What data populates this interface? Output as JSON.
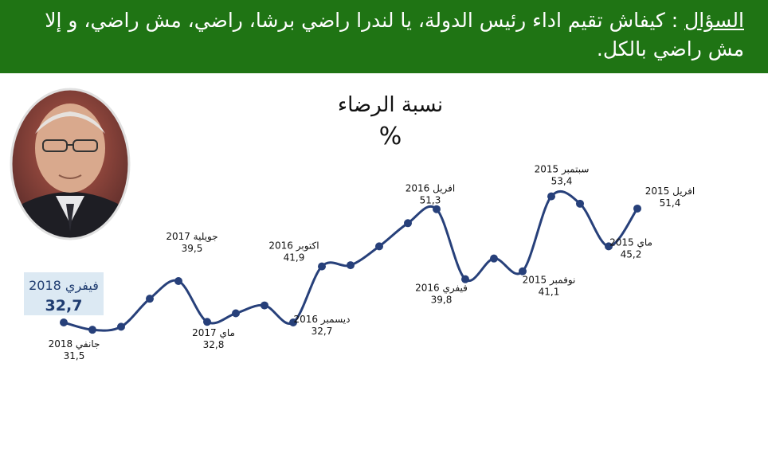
{
  "header": {
    "question_label": "السؤال",
    "question_text": " : كيفاش تقيم اداء  رئيس الدولة، يا لندرا راضي برشا، راضي، مش راضي، و إلا مش راضي بالكل."
  },
  "colors": {
    "banner": "#1f7414",
    "line": "#27407a",
    "highlight_box": "#dce9f3"
  },
  "chart_data": {
    "type": "line",
    "title": "نسبة الرضاء",
    "unit": "%",
    "note": "values read right-to-left chronologically (April 2015 → February 2018); only labeled points carry labels",
    "points": [
      {
        "label": "افريل 2015",
        "value": "51,4",
        "y": 51.4
      },
      {
        "label": "ماي 2015",
        "value": "45,2",
        "y": 45.2
      },
      {
        "label": "",
        "value": "",
        "y": 52.2
      },
      {
        "label": "سبتمبر 2015",
        "value": "53,4",
        "y": 53.4
      },
      {
        "label": "نوفمبر 2015",
        "value": "41,1",
        "y": 41.1
      },
      {
        "label": "",
        "value": "",
        "y": 43.2
      },
      {
        "label": "فيفري 2016",
        "value": "39,8",
        "y": 39.8
      },
      {
        "label": "افريل 2016",
        "value": "51,3",
        "y": 51.3
      },
      {
        "label": "",
        "value": "",
        "y": 49.0
      },
      {
        "label": "",
        "value": "",
        "y": 45.2
      },
      {
        "label": "",
        "value": "",
        "y": 42.1
      },
      {
        "label": "اكتوبر 2016",
        "value": "41,9",
        "y": 41.9
      },
      {
        "label": "ديسمبر 2016",
        "value": "32,7",
        "y": 32.7
      },
      {
        "label": "",
        "value": "",
        "y": 35.5
      },
      {
        "label": "",
        "value": "",
        "y": 34.2
      },
      {
        "label": "ماي 2017",
        "value": "32,8",
        "y": 32.8
      },
      {
        "label": "جويلية 2017",
        "value": "39,5",
        "y": 39.5
      },
      {
        "label": "",
        "value": "",
        "y": 36.6
      },
      {
        "label": "",
        "value": "",
        "y": 32.0
      },
      {
        "label": "جانفي 2018",
        "value": "31,5",
        "y": 31.5
      },
      {
        "label": "فيفري 2018",
        "value": "32,7",
        "y": 32.7,
        "highlight": true
      }
    ]
  }
}
